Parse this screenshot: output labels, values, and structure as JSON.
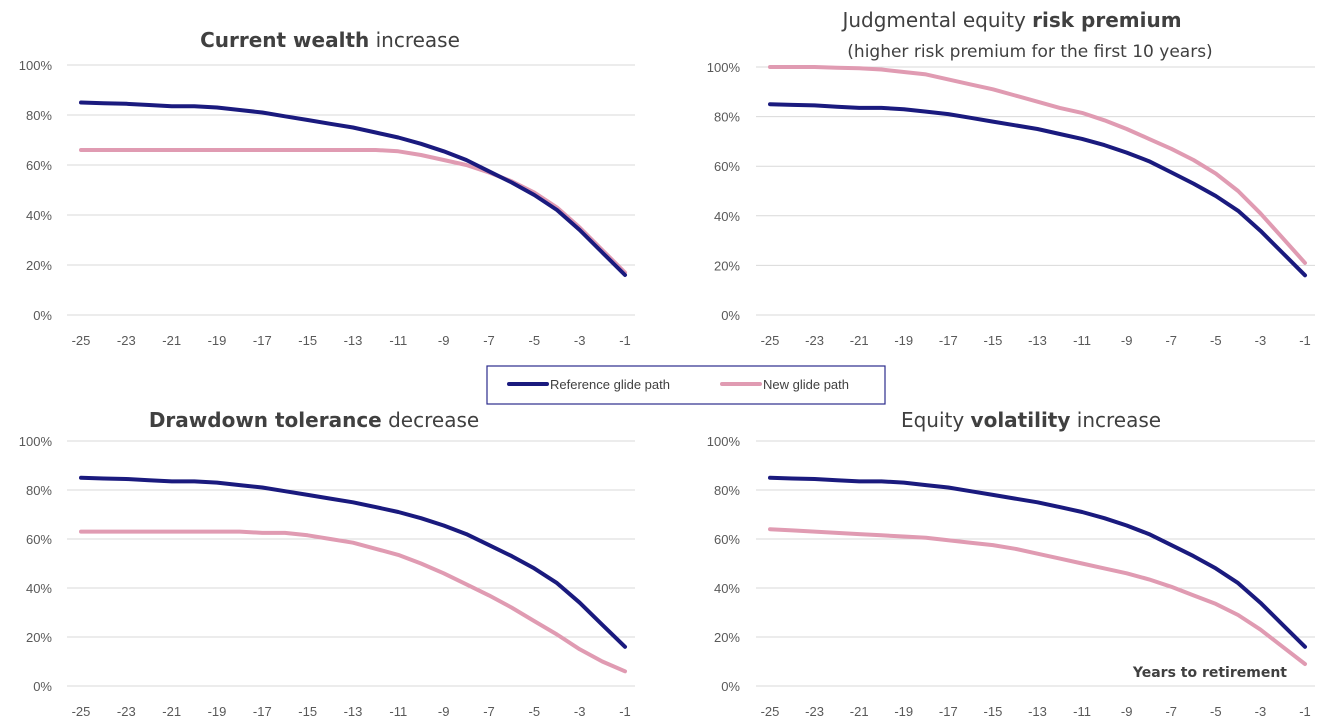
{
  "colors": {
    "reference": "#1a1a7e",
    "new": "#e09bb2",
    "grid": "#d9d9d9",
    "text": "#595959"
  },
  "legend": {
    "reference_label": "Reference glide path",
    "new_label": "New glide path"
  },
  "annotation": "Years to retirement",
  "chart_data": [
    {
      "type": "line",
      "title_bold": "Current wealth",
      "title_rest": " increase",
      "subtitle": "",
      "x": [
        -25,
        -24,
        -23,
        -22,
        -21,
        -20,
        -19,
        -18,
        -17,
        -16,
        -15,
        -14,
        -13,
        -12,
        -11,
        -10,
        -9,
        -8,
        -7,
        -6,
        -5,
        -4,
        -3,
        -2,
        -1
      ],
      "xticks": [
        -25,
        -23,
        -21,
        -19,
        -17,
        -15,
        -13,
        -11,
        -9,
        -7,
        -5,
        -3,
        -1
      ],
      "yticks": [
        0,
        20,
        40,
        60,
        80,
        100
      ],
      "ylim": [
        0,
        100
      ],
      "series": [
        {
          "name": "Reference glide path",
          "values": [
            85,
            84.7,
            84.5,
            84,
            83.5,
            83.5,
            83,
            82,
            81,
            79.5,
            78,
            76.5,
            75,
            73,
            71,
            68.5,
            65.5,
            62,
            57.5,
            53,
            48,
            42,
            34,
            25,
            16
          ]
        },
        {
          "name": "New glide path",
          "values": [
            66,
            66,
            66,
            66,
            66,
            66,
            66,
            66,
            66,
            66,
            66,
            66,
            66,
            66,
            65.5,
            64,
            62,
            60,
            57,
            53.5,
            49,
            43,
            35,
            26,
            17
          ]
        }
      ]
    },
    {
      "type": "line",
      "title_bold": "risk premium",
      "title_pre": "Judgmental equity ",
      "subtitle": "(higher risk premium for the first 10 years)",
      "x": [
        -25,
        -24,
        -23,
        -22,
        -21,
        -20,
        -19,
        -18,
        -17,
        -16,
        -15,
        -14,
        -13,
        -12,
        -11,
        -10,
        -9,
        -8,
        -7,
        -6,
        -5,
        -4,
        -3,
        -2,
        -1
      ],
      "xticks": [
        -25,
        -23,
        -21,
        -19,
        -17,
        -15,
        -13,
        -11,
        -9,
        -7,
        -5,
        -3,
        -1
      ],
      "yticks": [
        0,
        20,
        40,
        60,
        80,
        100
      ],
      "ylim": [
        0,
        100
      ],
      "series": [
        {
          "name": "Reference glide path",
          "values": [
            85,
            84.7,
            84.5,
            84,
            83.5,
            83.5,
            83,
            82,
            81,
            79.5,
            78,
            76.5,
            75,
            73,
            71,
            68.5,
            65.5,
            62,
            57.5,
            53,
            48,
            42,
            34,
            25,
            16
          ]
        },
        {
          "name": "New glide path",
          "values": [
            100,
            100,
            100,
            99.7,
            99.5,
            99,
            98,
            97,
            95,
            93,
            91,
            88.5,
            86,
            83.5,
            81.5,
            78.5,
            75,
            71,
            67,
            62.5,
            57,
            50,
            41,
            31,
            21
          ]
        }
      ]
    },
    {
      "type": "line",
      "title_bold": "Drawdown tolerance",
      "title_rest": " decrease",
      "subtitle": "",
      "x": [
        -25,
        -24,
        -23,
        -22,
        -21,
        -20,
        -19,
        -18,
        -17,
        -16,
        -15,
        -14,
        -13,
        -12,
        -11,
        -10,
        -9,
        -8,
        -7,
        -6,
        -5,
        -4,
        -3,
        -2,
        -1
      ],
      "xticks": [
        -25,
        -23,
        -21,
        -19,
        -17,
        -15,
        -13,
        -11,
        -9,
        -7,
        -5,
        -3,
        -1
      ],
      "yticks": [
        0,
        20,
        40,
        60,
        80,
        100
      ],
      "ylim": [
        0,
        100
      ],
      "series": [
        {
          "name": "Reference glide path",
          "values": [
            85,
            84.7,
            84.5,
            84,
            83.5,
            83.5,
            83,
            82,
            81,
            79.5,
            78,
            76.5,
            75,
            73,
            71,
            68.5,
            65.5,
            62,
            57.5,
            53,
            48,
            42,
            34,
            25,
            16
          ]
        },
        {
          "name": "New glide path",
          "values": [
            63,
            63,
            63,
            63,
            63,
            63,
            63,
            63,
            62.5,
            62.5,
            61.5,
            60,
            58.5,
            56,
            53.5,
            50,
            46,
            41.5,
            37,
            32,
            26.5,
            21,
            15,
            10,
            6
          ]
        }
      ]
    },
    {
      "type": "line",
      "title_pre": "Equity ",
      "title_bold": "volatility",
      "title_rest": " increase",
      "subtitle": "",
      "x": [
        -25,
        -24,
        -23,
        -22,
        -21,
        -20,
        -19,
        -18,
        -17,
        -16,
        -15,
        -14,
        -13,
        -12,
        -11,
        -10,
        -9,
        -8,
        -7,
        -6,
        -5,
        -4,
        -3,
        -2,
        -1
      ],
      "xticks": [
        -25,
        -23,
        -21,
        -19,
        -17,
        -15,
        -13,
        -11,
        -9,
        -7,
        -5,
        -3,
        -1
      ],
      "yticks": [
        0,
        20,
        40,
        60,
        80,
        100
      ],
      "ylim": [
        0,
        100
      ],
      "series": [
        {
          "name": "Reference glide path",
          "values": [
            85,
            84.7,
            84.5,
            84,
            83.5,
            83.5,
            83,
            82,
            81,
            79.5,
            78,
            76.5,
            75,
            73,
            71,
            68.5,
            65.5,
            62,
            57.5,
            53,
            48,
            42,
            34,
            25,
            16
          ]
        },
        {
          "name": "New glide path",
          "values": [
            64,
            63.5,
            63,
            62.5,
            62,
            61.5,
            61,
            60.5,
            59.5,
            58.5,
            57.5,
            56,
            54,
            52,
            50,
            48,
            46,
            43.5,
            40.5,
            37,
            33.5,
            29,
            23,
            16,
            9
          ]
        }
      ]
    }
  ]
}
